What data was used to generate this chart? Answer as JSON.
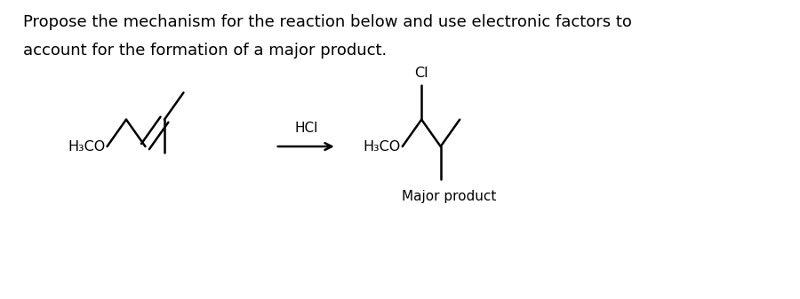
{
  "background_color": "#ffffff",
  "text_line1": "Propose the mechanism for the reaction below and use electronic factors to",
  "text_line2": "account for the formation of a major product.",
  "text_fontsize": 13,
  "hcl_label": "HCl",
  "major_product_label": "Major product",
  "h3co_label": "H₃CO",
  "cl_label": "Cl",
  "line_color": "#000000",
  "line_width": 1.8,
  "figsize": [
    9.0,
    3.37
  ],
  "dpi": 100
}
